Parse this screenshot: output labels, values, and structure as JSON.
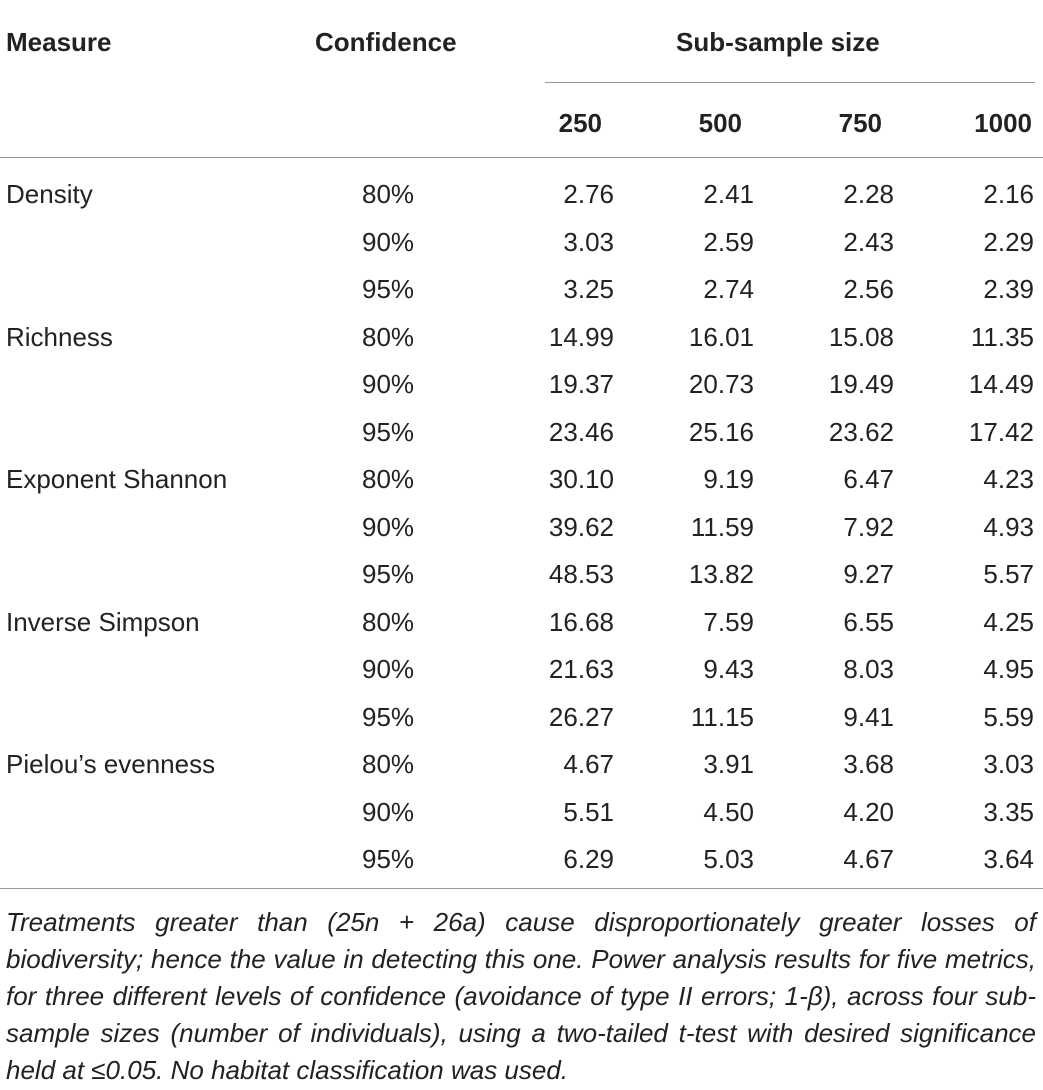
{
  "table": {
    "headers": {
      "measure": "Measure",
      "confidence": "Confidence",
      "subsample": "Sub-sample size",
      "sizes": [
        "250",
        "500",
        "750",
        "1000"
      ]
    },
    "rows": [
      {
        "measure": "Density",
        "confidence": "80%",
        "values": [
          "2.76",
          "2.41",
          "2.28",
          "2.16"
        ]
      },
      {
        "measure": "",
        "confidence": "90%",
        "values": [
          "3.03",
          "2.59",
          "2.43",
          "2.29"
        ]
      },
      {
        "measure": "",
        "confidence": "95%",
        "values": [
          "3.25",
          "2.74",
          "2.56",
          "2.39"
        ]
      },
      {
        "measure": "Richness",
        "confidence": "80%",
        "values": [
          "14.99",
          "16.01",
          "15.08",
          "11.35"
        ]
      },
      {
        "measure": "",
        "confidence": "90%",
        "values": [
          "19.37",
          "20.73",
          "19.49",
          "14.49"
        ]
      },
      {
        "measure": "",
        "confidence": "95%",
        "values": [
          "23.46",
          "25.16",
          "23.62",
          "17.42"
        ]
      },
      {
        "measure": "Exponent Shannon",
        "confidence": "80%",
        "values": [
          "30.10",
          "9.19",
          "6.47",
          "4.23"
        ]
      },
      {
        "measure": "",
        "confidence": "90%",
        "values": [
          "39.62",
          "11.59",
          "7.92",
          "4.93"
        ]
      },
      {
        "measure": "",
        "confidence": "95%",
        "values": [
          "48.53",
          "13.82",
          "9.27",
          "5.57"
        ]
      },
      {
        "measure": "Inverse Simpson",
        "confidence": "80%",
        "values": [
          "16.68",
          "7.59",
          "6.55",
          "4.25"
        ]
      },
      {
        "measure": "",
        "confidence": "90%",
        "values": [
          "21.63",
          "9.43",
          "8.03",
          "4.95"
        ]
      },
      {
        "measure": "",
        "confidence": "95%",
        "values": [
          "26.27",
          "11.15",
          "9.41",
          "5.59"
        ]
      },
      {
        "measure": "Pielou’s evenness",
        "confidence": "80%",
        "values": [
          "4.67",
          "3.91",
          "3.68",
          "3.03"
        ]
      },
      {
        "measure": "",
        "confidence": "90%",
        "values": [
          "5.51",
          "4.50",
          "4.20",
          "3.35"
        ]
      },
      {
        "measure": "",
        "confidence": "95%",
        "values": [
          "6.29",
          "5.03",
          "4.67",
          "3.64"
        ]
      }
    ]
  },
  "footnote": "Treatments greater than (25n + 26a) cause disproportionately greater losses of biodiversity; hence the value in detecting this one. Power analysis results for five metrics, for three different levels of confidence (avoidance of type II errors; 1-β), across four sub-sample sizes (number of individuals), using a two-tailed t-test with desired significance held at ≤0.05. No habitat classification was used."
}
